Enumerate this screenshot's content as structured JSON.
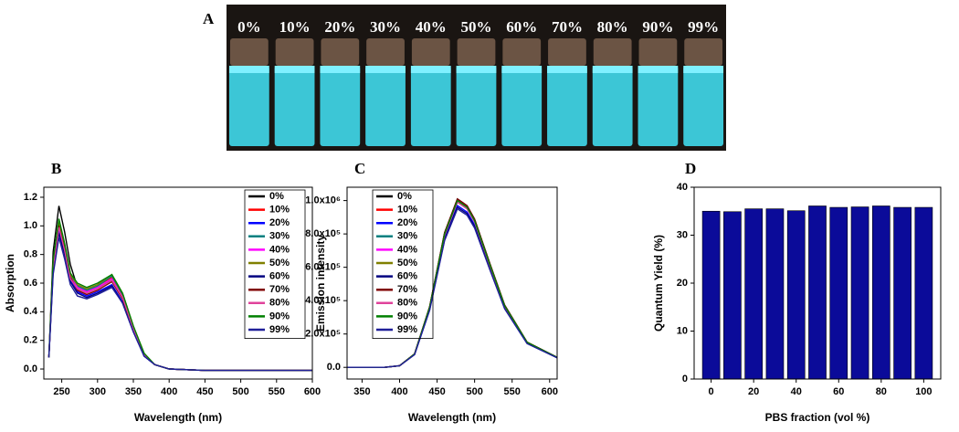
{
  "photo": {
    "label": "A",
    "vial_labels": [
      "0%",
      "10%",
      "20%",
      "30%",
      "40%",
      "50%",
      "60%",
      "70%",
      "80%",
      "90%",
      "99%"
    ]
  },
  "chart_data": [
    {
      "type": "line",
      "panel": "B",
      "x_label": "Wavelength (nm)",
      "y_label": "Absorption",
      "x": [
        232,
        238,
        246,
        254,
        262,
        272,
        285,
        300,
        320,
        335,
        350,
        365,
        380,
        400,
        450,
        600
      ],
      "xlim": [
        225,
        600
      ],
      "xticks": [
        250,
        300,
        350,
        400,
        450,
        500,
        550,
        600
      ],
      "ylim": [
        -0.07,
        1.27
      ],
      "yticks": [
        {
          "value": 0,
          "label": "0.0"
        },
        0.2,
        0.4,
        0.6,
        0.8,
        {
          "value": 1,
          "label": "1.0"
        },
        1.2
      ],
      "series": [
        {
          "name": "0%",
          "color": "#000000",
          "values": [
            0.08,
            0.82,
            1.14,
            0.96,
            0.73,
            0.57,
            0.54,
            0.57,
            0.62,
            0.5,
            0.28,
            0.1,
            0.03,
            0,
            -0.01,
            -0.01
          ]
        },
        {
          "name": "10%",
          "color": "#ff0000",
          "values": [
            0.08,
            0.75,
            1.04,
            0.87,
            0.67,
            0.58,
            0.55,
            0.58,
            0.64,
            0.51,
            0.29,
            0.1,
            0.03,
            0,
            -0.01,
            -0.01
          ]
        },
        {
          "name": "20%",
          "color": "#0000ff",
          "values": [
            0.08,
            0.7,
            0.97,
            0.81,
            0.62,
            0.54,
            0.51,
            0.54,
            0.59,
            0.47,
            0.27,
            0.09,
            0.03,
            0,
            -0.01,
            -0.01
          ]
        },
        {
          "name": "30%",
          "color": "#008080",
          "values": [
            0.08,
            0.73,
            1.02,
            0.86,
            0.65,
            0.58,
            0.55,
            0.58,
            0.65,
            0.52,
            0.29,
            0.1,
            0.03,
            0,
            -0.01,
            -0.01
          ]
        },
        {
          "name": "40%",
          "color": "#ff00ff",
          "values": [
            0.08,
            0.72,
            1.0,
            0.84,
            0.64,
            0.57,
            0.54,
            0.57,
            0.63,
            0.5,
            0.28,
            0.1,
            0.03,
            0,
            -0.01,
            -0.01
          ]
        },
        {
          "name": "50%",
          "color": "#808000",
          "values": [
            0.08,
            0.74,
            1.03,
            0.87,
            0.66,
            0.59,
            0.56,
            0.59,
            0.66,
            0.53,
            0.3,
            0.11,
            0.03,
            0,
            -0.01,
            -0.01
          ]
        },
        {
          "name": "60%",
          "color": "#000080",
          "values": [
            0.08,
            0.68,
            0.95,
            0.8,
            0.61,
            0.53,
            0.5,
            0.53,
            0.58,
            0.46,
            0.26,
            0.09,
            0.03,
            0,
            -0.01,
            -0.01
          ]
        },
        {
          "name": "70%",
          "color": "#800000",
          "values": [
            0.08,
            0.72,
            1.0,
            0.84,
            0.64,
            0.55,
            0.52,
            0.55,
            0.61,
            0.49,
            0.27,
            0.1,
            0.03,
            0,
            -0.01,
            -0.01
          ]
        },
        {
          "name": "80%",
          "color": "#e0439b",
          "values": [
            0.08,
            0.71,
            0.99,
            0.83,
            0.63,
            0.56,
            0.53,
            0.56,
            0.62,
            0.5,
            0.28,
            0.1,
            0.03,
            0,
            -0.01,
            -0.01
          ]
        },
        {
          "name": "90%",
          "color": "#008000",
          "values": [
            0.08,
            0.76,
            1.05,
            0.88,
            0.67,
            0.6,
            0.57,
            0.6,
            0.66,
            0.53,
            0.3,
            0.11,
            0.03,
            0,
            -0.01,
            -0.01
          ]
        },
        {
          "name": "99%",
          "color": "#1f1f99",
          "values": [
            0.08,
            0.66,
            0.92,
            0.77,
            0.59,
            0.51,
            0.49,
            0.52,
            0.57,
            0.46,
            0.26,
            0.09,
            0.03,
            0,
            -0.01,
            -0.01
          ]
        }
      ]
    },
    {
      "type": "line",
      "panel": "C",
      "x_label": "Wavelength (nm)",
      "y_label": "Emission intensity",
      "x": [
        330,
        380,
        400,
        420,
        440,
        460,
        477,
        490,
        500,
        520,
        540,
        570,
        610
      ],
      "xlim": [
        330,
        610
      ],
      "xticks": [
        350,
        400,
        450,
        500,
        550,
        600
      ],
      "ylim": [
        -70000,
        1080000
      ],
      "yticks": [
        {
          "value": 0,
          "label": "0.0"
        },
        {
          "value": 200000,
          "label": "2.0x10⁵"
        },
        {
          "value": 400000,
          "label": "4.0x10⁵"
        },
        {
          "value": 600000,
          "label": "6.0x10⁵"
        },
        {
          "value": 800000,
          "label": "8.0x10⁵"
        },
        {
          "value": 1000000,
          "label": "1.0x10⁶"
        }
      ],
      "series": [
        {
          "name": "0%",
          "color": "#000000",
          "values": [
            0,
            0,
            10100,
            80800,
            363600,
            808000,
            1010000,
            969600,
            888800,
            626200,
            373700,
            151500,
            60600
          ]
        },
        {
          "name": "10%",
          "color": "#ff0000",
          "values": [
            0,
            0,
            10000,
            80000,
            360000,
            800000,
            1000000,
            960000,
            880000,
            620000,
            370000,
            150000,
            60000
          ]
        },
        {
          "name": "20%",
          "color": "#0000ff",
          "values": [
            0,
            0,
            9700,
            77600,
            349200,
            776000,
            970000,
            931200,
            853600,
            601400,
            358900,
            145500,
            58200
          ]
        },
        {
          "name": "30%",
          "color": "#008080",
          "values": [
            0,
            0,
            9900,
            79200,
            356400,
            792000,
            990000,
            950400,
            871200,
            613800,
            366300,
            148500,
            59400
          ]
        },
        {
          "name": "40%",
          "color": "#ff00ff",
          "values": [
            0,
            0,
            10000,
            80000,
            360000,
            800000,
            1000000,
            960000,
            880000,
            620000,
            370000,
            150000,
            60000
          ]
        },
        {
          "name": "50%",
          "color": "#808000",
          "values": [
            0,
            0,
            10000,
            80000,
            360000,
            800000,
            1000000,
            960000,
            880000,
            620000,
            370000,
            150000,
            60000
          ]
        },
        {
          "name": "60%",
          "color": "#000080",
          "values": [
            0,
            0,
            9600,
            76800,
            345600,
            768000,
            960000,
            921600,
            844800,
            595200,
            355200,
            144000,
            57600
          ]
        },
        {
          "name": "70%",
          "color": "#800000",
          "values": [
            0,
            0,
            10100,
            80800,
            363600,
            808000,
            1010000,
            969600,
            888800,
            626200,
            373700,
            151500,
            60600
          ]
        },
        {
          "name": "80%",
          "color": "#e0439b",
          "values": [
            0,
            0,
            9900,
            79200,
            356400,
            792000,
            990000,
            950400,
            871200,
            613800,
            366300,
            148500,
            59400
          ]
        },
        {
          "name": "90%",
          "color": "#008000",
          "values": [
            0,
            0,
            10000,
            80000,
            360000,
            800000,
            1000000,
            960000,
            880000,
            620000,
            370000,
            150000,
            60000
          ]
        },
        {
          "name": "99%",
          "color": "#1f1f99",
          "values": [
            0,
            0,
            9500,
            76000,
            342000,
            760000,
            950000,
            912000,
            836000,
            589000,
            351500,
            142500,
            57000
          ]
        }
      ]
    },
    {
      "type": "bar",
      "panel": "D",
      "x_label": "PBS fraction (vol %)",
      "y_label": "Quantum Yield  (%)",
      "x": [
        0,
        10,
        20,
        30,
        40,
        50,
        60,
        70,
        80,
        90,
        100
      ],
      "values": [
        35.0,
        34.9,
        35.5,
        35.5,
        35.1,
        36.1,
        35.8,
        35.9,
        36.1,
        35.8,
        35.8
      ],
      "color": "#0b0b99",
      "xlim": [
        -8,
        108
      ],
      "xticks": [
        0,
        20,
        40,
        60,
        80,
        100
      ],
      "ylim": [
        0,
        40
      ],
      "yticks": [
        0,
        10,
        20,
        30,
        40
      ]
    }
  ]
}
